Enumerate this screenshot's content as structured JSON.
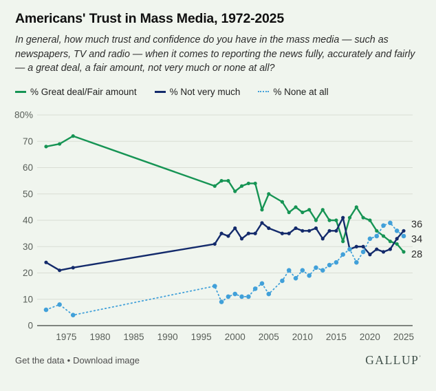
{
  "page": {
    "background": "#f0f5ee"
  },
  "header": {
    "title": "Americans' Trust in Mass Media, 1972-2025",
    "subtitle": "In general, how much trust and confidence do you have in the mass media — such as newspapers, TV and radio — when it comes to reporting the news fully, accurately and fairly — a great deal, a fair amount, not very much or none at all?"
  },
  "legend": {
    "items": [
      {
        "label": "% Great deal/Fair amount",
        "color": "#169454",
        "style": "solid"
      },
      {
        "label": "% Not very much",
        "color": "#132a6b",
        "style": "solid"
      },
      {
        "label": "% None at all",
        "color": "#41a0d9",
        "style": "dotted"
      }
    ]
  },
  "chart_data": {
    "type": "line",
    "title": "Americans' Trust in Mass Media, 1972-2025",
    "xlabel": "",
    "ylabel": "",
    "x": [
      1972,
      1974,
      1976,
      1997,
      1998,
      1999,
      2000,
      2001,
      2002,
      2003,
      2004,
      2005,
      2007,
      2008,
      2009,
      2010,
      2011,
      2012,
      2013,
      2014,
      2015,
      2016,
      2017,
      2018,
      2019,
      2020,
      2021,
      2022,
      2023,
      2024,
      2025
    ],
    "series": [
      {
        "name": "% Great deal/Fair amount",
        "color": "#169454",
        "style": "solid",
        "values": [
          68,
          69,
          72,
          53,
          55,
          55,
          51,
          53,
          54,
          54,
          44,
          50,
          47,
          43,
          45,
          43,
          44,
          40,
          44,
          40,
          40,
          32,
          41,
          45,
          41,
          40,
          36,
          34,
          32,
          31,
          28
        ]
      },
      {
        "name": "% Not very much",
        "color": "#132a6b",
        "style": "solid",
        "values": [
          24,
          21,
          22,
          31,
          35,
          34,
          37,
          33,
          35,
          35,
          39,
          37,
          35,
          35,
          37,
          36,
          36,
          37,
          33,
          36,
          36,
          41,
          29,
          30,
          30,
          27,
          29,
          28,
          29,
          33,
          36
        ]
      },
      {
        "name": "% None at all",
        "color": "#41a0d9",
        "style": "dotted",
        "values": [
          6,
          8,
          4,
          15,
          9,
          11,
          12,
          11,
          11,
          14,
          16,
          12,
          17,
          21,
          18,
          21,
          19,
          22,
          21,
          23,
          24,
          27,
          29,
          24,
          28,
          33,
          34,
          38,
          39,
          36,
          34
        ]
      }
    ],
    "xlim": [
      1971,
      2026
    ],
    "ylim": [
      0,
      80
    ],
    "xticks": [
      1975,
      1980,
      1985,
      1990,
      1995,
      2000,
      2005,
      2010,
      2015,
      2020,
      2025
    ],
    "yticks": [
      0,
      10,
      20,
      30,
      40,
      50,
      60,
      70,
      80
    ],
    "ytick_top_label": "80%",
    "grid": "horizontal",
    "legend_position": "top",
    "end_labels": [
      {
        "label": "36",
        "value": 36,
        "dy": -5
      },
      {
        "label": "34",
        "value": 34,
        "dy": 9
      },
      {
        "label": "28",
        "value": 28,
        "dy": 8
      }
    ],
    "colors": {
      "grid": "#d9ddd4",
      "axis": "#7f847e",
      "tick_text": "#585e58",
      "end_label_text": "#2d2d2d"
    }
  },
  "footer": {
    "links": [
      "Get the data",
      "Download image"
    ],
    "separator": "•",
    "logo": "GALLUP",
    "logo_mark": "ʼ"
  }
}
